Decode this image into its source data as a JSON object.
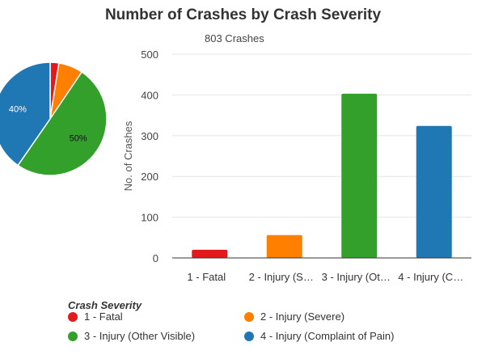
{
  "chart_data": {
    "type": "bar",
    "title": "Number of Crashes by Crash Severity",
    "subtitle": "803 Crashes",
    "ylabel": "No. of Crashes",
    "xlabel": "",
    "ylim": [
      0,
      500
    ],
    "yticks": [
      0,
      100,
      200,
      300,
      400,
      500
    ],
    "grid": true,
    "categories": [
      "1 - Fatal",
      "2 - Injury (Severe)",
      "3 - Injury (Other Visible)",
      "4 - Injury (Complaint of Pain)"
    ],
    "tick_labels": [
      "1 - Fatal",
      "2 - Injury (S…",
      "3 - Injury (Ot…",
      "4 - Injury (C…"
    ],
    "values": [
      20,
      56,
      403,
      324
    ],
    "colors": [
      "#e31a1c",
      "#ff7f00",
      "#33a02c",
      "#1f78b4"
    ],
    "pie": {
      "type": "pie",
      "values": [
        20,
        56,
        403,
        324
      ],
      "labels": [
        "",
        "",
        "50%",
        "40%"
      ]
    },
    "legend": {
      "title": "Crash Severity",
      "placement": "bottom",
      "entries": [
        "1 - Fatal",
        "2 - Injury (Severe)",
        "3 - Injury (Other Visible)",
        "4 - Injury (Complaint of Pain)"
      ]
    }
  }
}
